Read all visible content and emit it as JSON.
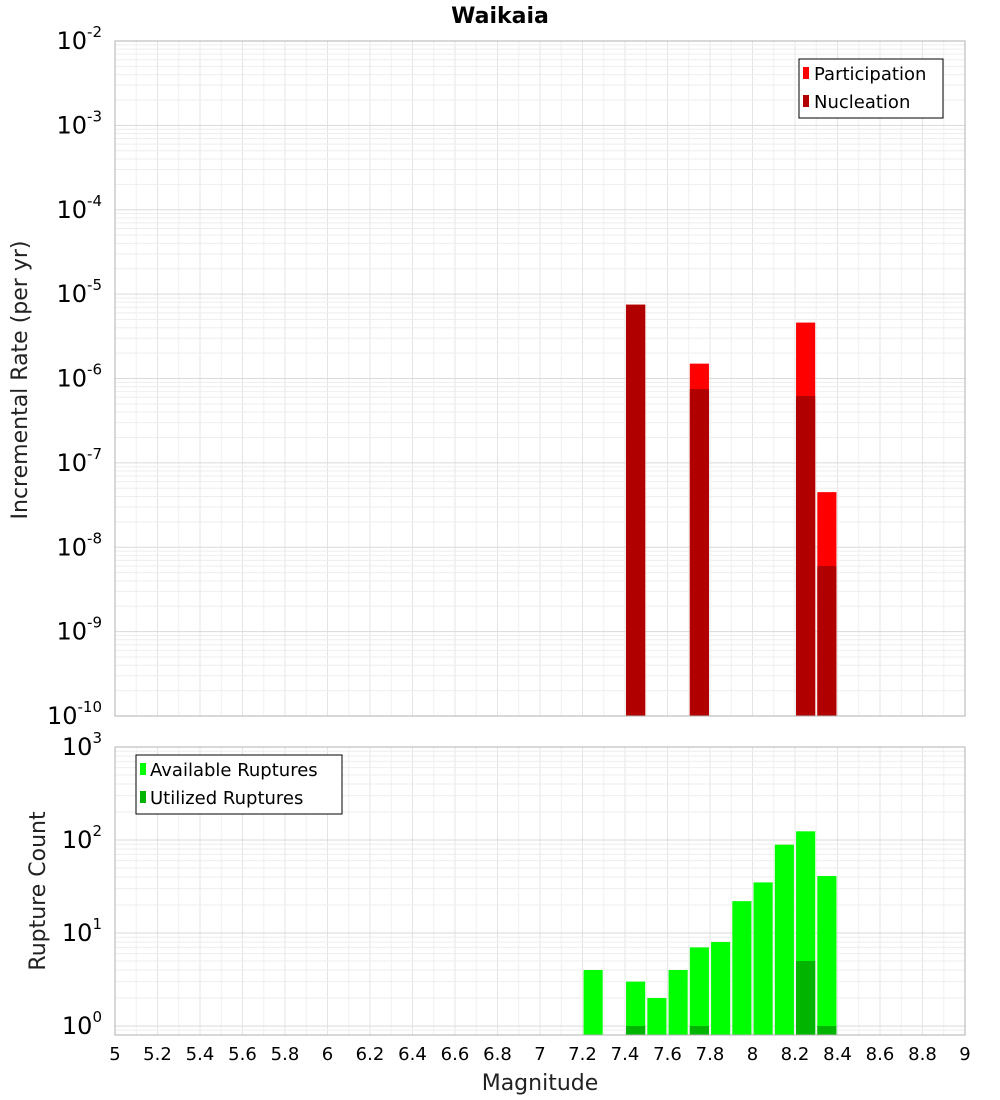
{
  "chart_data": [
    {
      "type": "bar",
      "title": "Waikaia",
      "xlabel": "",
      "ylabel": "Incremental Rate (per yr)",
      "yscale": "log",
      "ylim": [
        1e-10,
        0.01
      ],
      "xlim": [
        5,
        9
      ],
      "y_tick_labels": [
        {
          "base": "10",
          "exp": "-10",
          "value": 1e-10
        },
        {
          "base": "10",
          "exp": "-9",
          "value": 1e-09
        },
        {
          "base": "10",
          "exp": "-8",
          "value": 1e-08
        },
        {
          "base": "10",
          "exp": "-7",
          "value": 1e-07
        },
        {
          "base": "10",
          "exp": "-6",
          "value": 1e-06
        },
        {
          "base": "10",
          "exp": "-5",
          "value": 1e-05
        },
        {
          "base": "10",
          "exp": "-4",
          "value": 0.0001
        },
        {
          "base": "10",
          "exp": "-3",
          "value": 0.001
        },
        {
          "base": "10",
          "exp": "-2",
          "value": 0.01
        }
      ],
      "grid": true,
      "legend_position": "top-right",
      "series": [
        {
          "name": "Participation",
          "color": "#ff0000",
          "x": [
            7.45,
            7.75,
            8.25,
            8.35
          ],
          "values": [
            7.5e-06,
            1.5e-06,
            4.6e-06,
            4.5e-08
          ]
        },
        {
          "name": "Nucleation",
          "color": "#b00000",
          "x": [
            7.45,
            7.75,
            8.25,
            8.35
          ],
          "values": [
            7.5e-06,
            7.5e-07,
            6.2e-07,
            6e-09
          ]
        }
      ]
    },
    {
      "type": "bar",
      "title": "",
      "xlabel": "Magnitude",
      "ylabel": "Rupture Count",
      "yscale": "log",
      "ylim": [
        0.8,
        1000
      ],
      "xlim": [
        5,
        9
      ],
      "y_tick_labels": [
        {
          "base": "10",
          "exp": "0",
          "value": 1
        },
        {
          "base": "10",
          "exp": "1",
          "value": 10
        },
        {
          "base": "10",
          "exp": "2",
          "value": 100
        },
        {
          "base": "10",
          "exp": "3",
          "value": 1000
        }
      ],
      "x_tick_labels": [
        "5",
        "5.2",
        "5.4",
        "5.6",
        "5.8",
        "6",
        "6.2",
        "6.4",
        "6.6",
        "6.8",
        "7",
        "7.2",
        "7.4",
        "7.6",
        "7.8",
        "8",
        "8.2",
        "8.4",
        "8.6",
        "8.8",
        "9"
      ],
      "grid": true,
      "legend_position": "top-left",
      "series": [
        {
          "name": "Available Ruptures",
          "color": "#00ff00",
          "x": [
            7.25,
            7.45,
            7.55,
            7.65,
            7.75,
            7.85,
            7.95,
            8.05,
            8.15,
            8.25,
            8.35
          ],
          "values": [
            4,
            3,
            2,
            4,
            7,
            8,
            22,
            35,
            89,
            124,
            41
          ]
        },
        {
          "name": "Utilized Ruptures",
          "color": "#00b400",
          "x": [
            7.45,
            7.75,
            8.25,
            8.35
          ],
          "values": [
            1,
            1,
            5,
            1
          ]
        }
      ]
    }
  ]
}
